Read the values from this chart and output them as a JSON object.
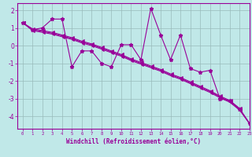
{
  "xlabel": "Windchill (Refroidissement éolien,°C)",
  "xlim": [
    -0.5,
    23
  ],
  "ylim": [
    -4.7,
    2.4
  ],
  "xticks": [
    0,
    1,
    2,
    3,
    4,
    5,
    6,
    7,
    8,
    9,
    10,
    11,
    12,
    13,
    14,
    15,
    16,
    17,
    18,
    19,
    20,
    21,
    22,
    23
  ],
  "yticks": [
    -4,
    -3,
    -2,
    -1,
    0,
    1,
    2
  ],
  "bg_color": "#c0e8e8",
  "line_color": "#990099",
  "grid_color": "#99bbbb",
  "series1_x": [
    0,
    1,
    2,
    3,
    4,
    5,
    6,
    7,
    8,
    9,
    10,
    11,
    12,
    13,
    14,
    15,
    16,
    17,
    18,
    19,
    20,
    21,
    22,
    23
  ],
  "series1_y": [
    1.3,
    0.9,
    1.0,
    1.5,
    1.5,
    -1.2,
    -0.3,
    -0.3,
    -1.0,
    -1.2,
    0.05,
    0.05,
    -0.8,
    2.1,
    0.6,
    -0.8,
    0.6,
    -1.3,
    -1.5,
    -1.4,
    -3.0,
    -3.1,
    -3.6,
    -4.4
  ],
  "series2_x": [
    0,
    1,
    2,
    3,
    4,
    5,
    6,
    7,
    8,
    9,
    10,
    11,
    12,
    13,
    14,
    15,
    16,
    17,
    18,
    19,
    20,
    21,
    22,
    23
  ],
  "series2_y": [
    1.3,
    0.95,
    0.85,
    0.75,
    0.6,
    0.45,
    0.25,
    0.1,
    -0.1,
    -0.3,
    -0.5,
    -0.75,
    -0.95,
    -1.15,
    -1.35,
    -1.6,
    -1.8,
    -2.05,
    -2.3,
    -2.55,
    -2.85,
    -3.1,
    -3.55,
    -4.4
  ],
  "series3_x": [
    0,
    1,
    2,
    3,
    4,
    5,
    6,
    7,
    8,
    9,
    10,
    11,
    12,
    13,
    14,
    15,
    16,
    17,
    18,
    19,
    20,
    21,
    22,
    23
  ],
  "series3_y": [
    1.3,
    0.9,
    0.8,
    0.7,
    0.55,
    0.4,
    0.2,
    0.05,
    -0.15,
    -0.35,
    -0.55,
    -0.8,
    -1.0,
    -1.2,
    -1.4,
    -1.65,
    -1.85,
    -2.1,
    -2.35,
    -2.6,
    -2.9,
    -3.15,
    -3.6,
    -4.4
  ],
  "series4_x": [
    0,
    1,
    2,
    3,
    4,
    5,
    6,
    7,
    8,
    9,
    10,
    11,
    12,
    13,
    14,
    15,
    16,
    17,
    18,
    19,
    20,
    21,
    22,
    23
  ],
  "series4_y": [
    1.3,
    0.85,
    0.75,
    0.65,
    0.5,
    0.35,
    0.15,
    0.0,
    -0.2,
    -0.4,
    -0.6,
    -0.85,
    -1.05,
    -1.25,
    -1.45,
    -1.7,
    -1.9,
    -2.15,
    -2.4,
    -2.65,
    -2.95,
    -3.2,
    -3.65,
    -4.4
  ]
}
